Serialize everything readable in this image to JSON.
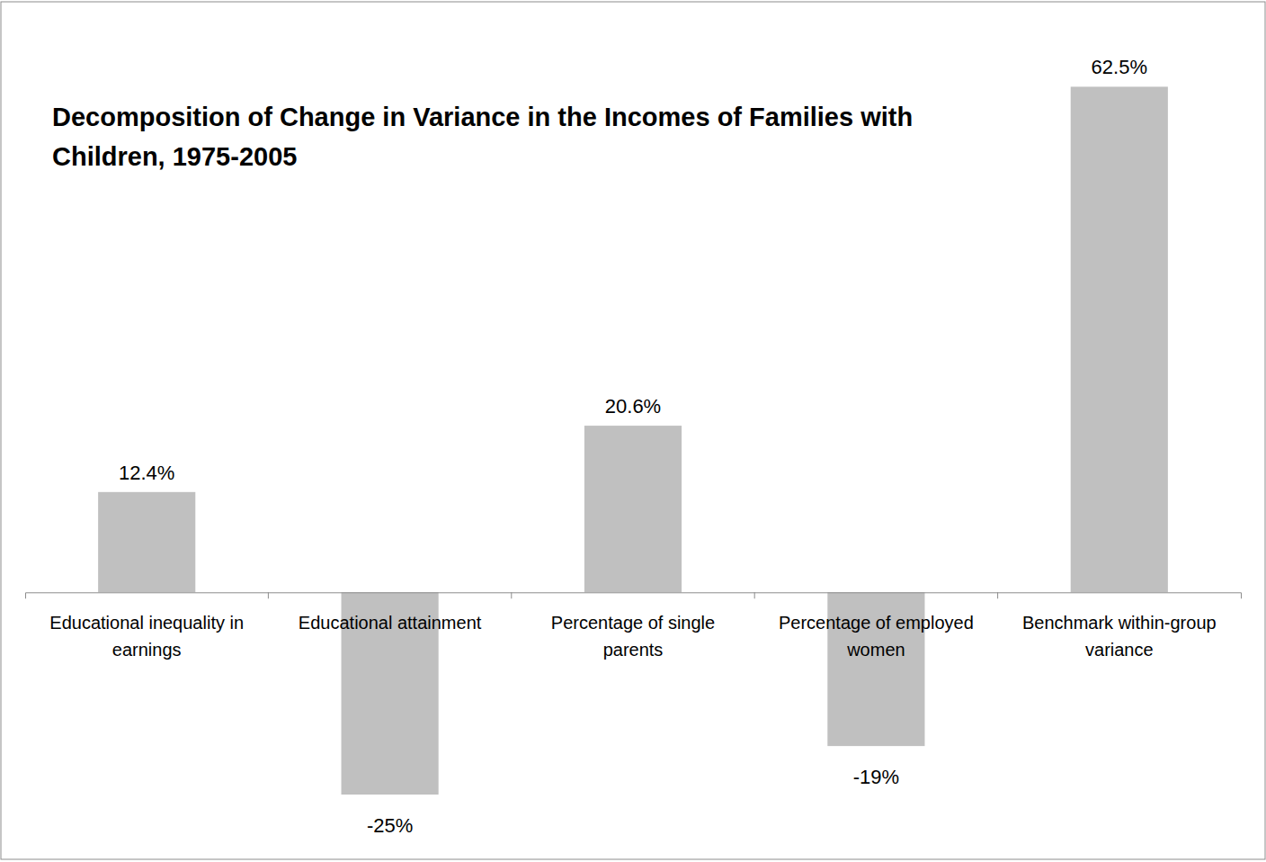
{
  "chart_data": {
    "type": "bar",
    "title": "Decomposition of Change in Variance in the Incomes of Families with Children, 1975-2005",
    "categories": [
      "Educational inequality in earnings",
      "Educational attainment",
      "Percentage of single parents",
      "Percentage of employed women",
      "Benchmark within-group variance"
    ],
    "values": [
      12.4,
      -25,
      20.6,
      -19,
      62.5
    ],
    "value_labels": [
      "12.4%",
      "-25%",
      "20.6%",
      "-19%",
      "62.5%"
    ],
    "color": "#c0c0c0",
    "ylim": [
      -33,
      73
    ],
    "data_labels": true,
    "tick_labels": "x"
  }
}
